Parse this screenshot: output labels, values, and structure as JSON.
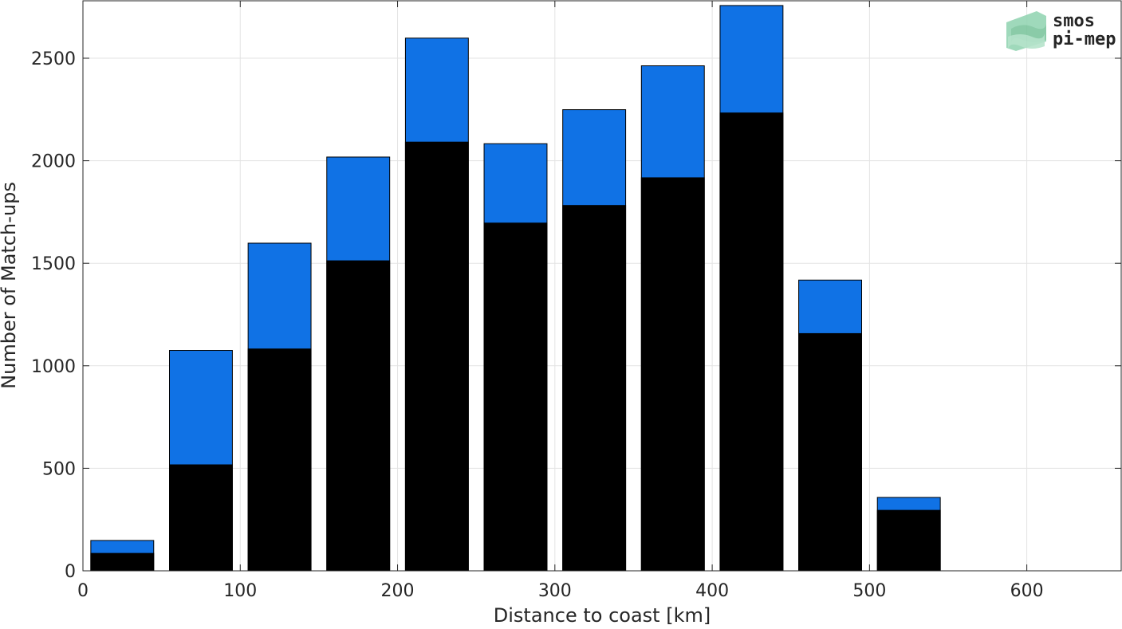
{
  "chart_data": {
    "type": "bar",
    "stacked": false,
    "overlaid": true,
    "xlabel": "Distance to coast [km]",
    "ylabel": "Number of Match-ups",
    "xlim": [
      0,
      660
    ],
    "ylim": [
      0,
      2780
    ],
    "x_ticks": [
      0,
      100,
      200,
      300,
      400,
      500,
      600
    ],
    "y_ticks": [
      0,
      500,
      1000,
      1500,
      2000,
      2500
    ],
    "grid": true,
    "bar_width": 40,
    "x": [
      25,
      75,
      125,
      175,
      225,
      275,
      325,
      375,
      425,
      475,
      525
    ],
    "series": [
      {
        "color": "#1072E5",
        "values": [
          148,
          1075,
          1598,
          2018,
          2598,
          2083,
          2249,
          2463,
          2757,
          1418,
          358
        ]
      },
      {
        "color": "#000000",
        "values": [
          85,
          517,
          1082,
          1512,
          2091,
          1696,
          1782,
          1917,
          2233,
          1157,
          295
        ]
      }
    ]
  },
  "logo": {
    "line1": "smos",
    "line2": "pi-mep",
    "color1": "#7FC9A0",
    "color2": "#9AA0A0"
  }
}
